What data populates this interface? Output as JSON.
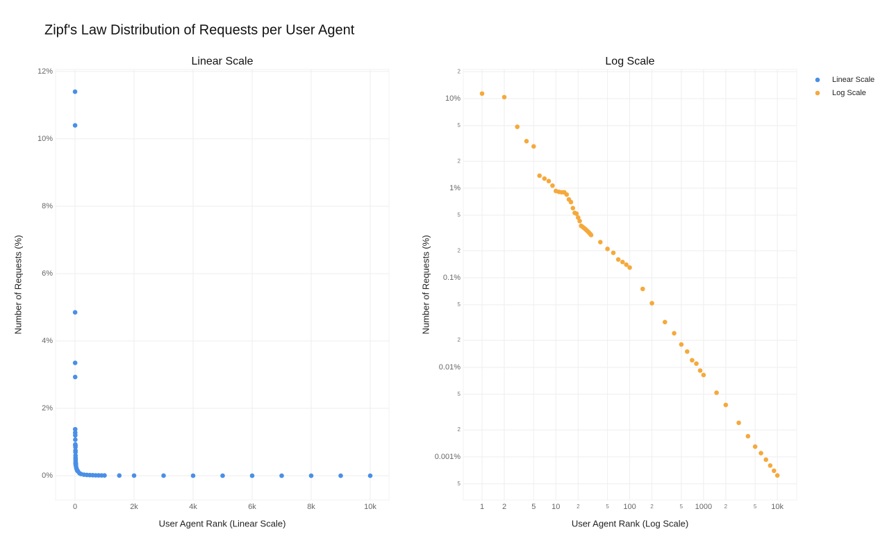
{
  "title": "Zipf's Law Distribution of Requests per User Agent",
  "chart_data": [
    {
      "type": "scatter",
      "title": "Linear Scale",
      "x_label": "User Agent Rank (Linear Scale)",
      "y_label": "Number of Requests (%)",
      "log_x": false,
      "log_y": false,
      "grid": true,
      "xlim": [
        -659,
        10635
      ],
      "ylim": [
        -0.72,
        12.06
      ],
      "xticks": [
        0,
        {
          "value": 2000,
          "label": "2k"
        },
        {
          "value": 4000,
          "label": "4k"
        },
        {
          "value": 6000,
          "label": "6k"
        },
        {
          "value": 8000,
          "label": "8k"
        },
        {
          "value": 10000,
          "label": "10k"
        }
      ],
      "yticks": [
        {
          "value": 0,
          "label": "0%"
        },
        {
          "value": 2,
          "label": "2%"
        },
        {
          "value": 4,
          "label": "4%"
        },
        {
          "value": 6,
          "label": "6%"
        },
        {
          "value": 8,
          "label": "8%"
        },
        {
          "value": 10,
          "label": "10%"
        },
        {
          "value": 12,
          "label": "12%"
        }
      ],
      "series": [
        {
          "name": "Linear Scale",
          "color": "#4a8fe7",
          "x": [
            1,
            2,
            3,
            4,
            5,
            6,
            7,
            8,
            9,
            10,
            11,
            12,
            13,
            14,
            15,
            16,
            17,
            18,
            19,
            20,
            21,
            22,
            23,
            24,
            25,
            26,
            27,
            28,
            29,
            30,
            40,
            50,
            60,
            70,
            80,
            90,
            100,
            150,
            200,
            300,
            400,
            500,
            600,
            700,
            800,
            900,
            1000,
            1500,
            2000,
            3000,
            4000,
            5000,
            6000,
            7000,
            8000,
            9000,
            10000
          ],
          "values": [
            11.4,
            10.4,
            4.85,
            3.35,
            2.93,
            1.38,
            1.28,
            1.2,
            1.07,
            0.93,
            0.91,
            0.9,
            0.9,
            0.85,
            0.75,
            0.7,
            0.6,
            0.53,
            0.52,
            0.47,
            0.43,
            0.38,
            0.37,
            0.36,
            0.35,
            0.34,
            0.33,
            0.32,
            0.31,
            0.3,
            0.25,
            0.21,
            0.19,
            0.16,
            0.15,
            0.14,
            0.13,
            0.075,
            0.052,
            0.032,
            0.024,
            0.018,
            0.015,
            0.012,
            0.011,
            0.0092,
            0.0082,
            0.0052,
            0.0038,
            0.0024,
            0.0017,
            0.0013,
            0.0011,
            0.00093,
            0.0008,
            0.0007,
            0.00062
          ]
        }
      ]
    },
    {
      "type": "scatter",
      "title": "Log Scale",
      "x_label": "User Agent Rank (Log Scale)",
      "y_label": "Number of Requests (%)",
      "log_x": true,
      "log_y": true,
      "grid": true,
      "xlim": [
        0.557,
        18280
      ],
      "ylim": [
        0.00033,
        21.2
      ],
      "xticks": [
        1,
        2,
        5,
        10,
        {
          "value": 20,
          "label": "2"
        },
        {
          "value": 50,
          "label": "5"
        },
        100,
        {
          "value": 200,
          "label": "2"
        },
        {
          "value": 500,
          "label": "5"
        },
        1000,
        {
          "value": 2000,
          "label": "2"
        },
        {
          "value": 5000,
          "label": "5"
        },
        {
          "value": 10000,
          "label": "10k"
        }
      ],
      "yticks": [
        {
          "value": 0.0005,
          "label": "5"
        },
        {
          "value": 0.001,
          "label": "0.001%"
        },
        {
          "value": 0.002,
          "label": "2"
        },
        {
          "value": 0.005,
          "label": "5"
        },
        {
          "value": 0.01,
          "label": "0.01%"
        },
        {
          "value": 0.02,
          "label": "2"
        },
        {
          "value": 0.05,
          "label": "5"
        },
        {
          "value": 0.1,
          "label": "0.1%"
        },
        {
          "value": 0.2,
          "label": "2"
        },
        {
          "value": 0.5,
          "label": "5"
        },
        {
          "value": 1,
          "label": "1%"
        },
        2,
        5,
        {
          "value": 10,
          "label": "10%"
        },
        {
          "value": 20,
          "label": "2"
        }
      ],
      "series": [
        {
          "name": "Log Scale",
          "color": "#f5a93c",
          "x": [
            1,
            2,
            3,
            4,
            5,
            6,
            7,
            8,
            9,
            10,
            11,
            12,
            13,
            14,
            15,
            16,
            17,
            18,
            19,
            20,
            21,
            22,
            23,
            24,
            25,
            26,
            27,
            28,
            29,
            30,
            40,
            50,
            60,
            70,
            80,
            90,
            100,
            150,
            200,
            300,
            400,
            500,
            600,
            700,
            800,
            900,
            1000,
            1500,
            2000,
            3000,
            4000,
            5000,
            6000,
            7000,
            8000,
            9000,
            10000
          ],
          "values": [
            11.4,
            10.4,
            4.85,
            3.35,
            2.93,
            1.38,
            1.28,
            1.2,
            1.07,
            0.93,
            0.91,
            0.9,
            0.9,
            0.85,
            0.75,
            0.7,
            0.6,
            0.53,
            0.52,
            0.47,
            0.43,
            0.38,
            0.37,
            0.36,
            0.35,
            0.34,
            0.33,
            0.32,
            0.31,
            0.3,
            0.25,
            0.21,
            0.19,
            0.16,
            0.15,
            0.14,
            0.13,
            0.075,
            0.052,
            0.032,
            0.024,
            0.018,
            0.015,
            0.012,
            0.011,
            0.0092,
            0.0082,
            0.0052,
            0.0038,
            0.0024,
            0.0017,
            0.0013,
            0.0011,
            0.00093,
            0.0008,
            0.0007,
            0.00062
          ]
        }
      ]
    }
  ]
}
